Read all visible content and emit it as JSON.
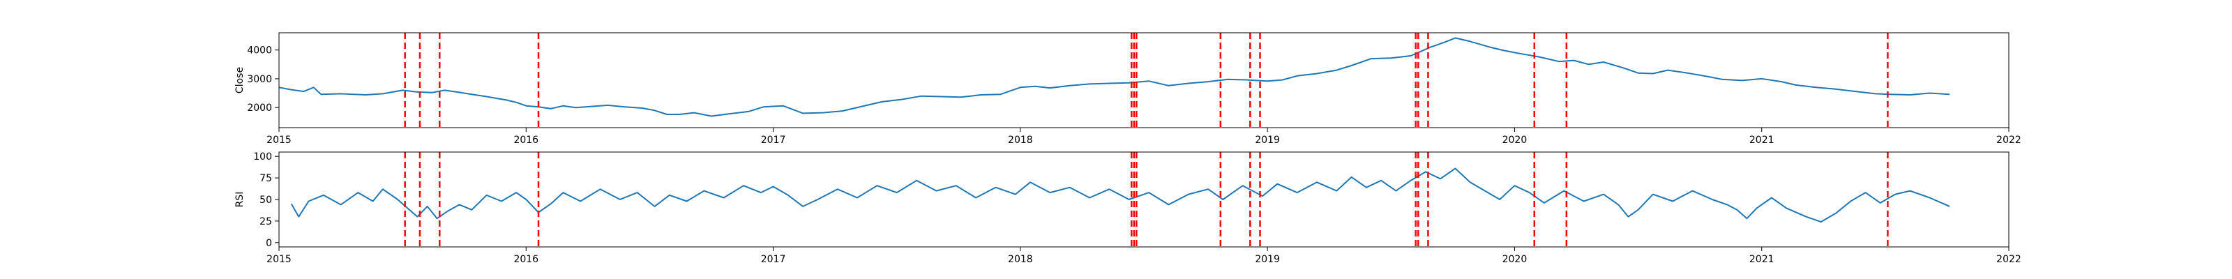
{
  "chart_data": [
    {
      "type": "line",
      "ylabel": "Close",
      "xlabel": "",
      "x_ticks": [
        "2015",
        "2016",
        "2017",
        "2018",
        "2019",
        "2020",
        "2021",
        "2022"
      ],
      "xlim": [
        2015.0,
        2022.0
      ],
      "y_ticks": [
        2000,
        3000,
        4000
      ],
      "ylim": [
        1300,
        4600
      ],
      "grid": false,
      "series": [
        {
          "color": "#1f77b4",
          "points": [
            [
              2015.0,
              2700
            ],
            [
              2015.05,
              2620
            ],
            [
              2015.1,
              2560
            ],
            [
              2015.14,
              2700
            ],
            [
              2015.17,
              2460
            ],
            [
              2015.25,
              2480
            ],
            [
              2015.35,
              2440
            ],
            [
              2015.42,
              2480
            ],
            [
              2015.5,
              2600
            ],
            [
              2015.56,
              2540
            ],
            [
              2015.62,
              2520
            ],
            [
              2015.67,
              2600
            ],
            [
              2015.72,
              2540
            ],
            [
              2015.78,
              2460
            ],
            [
              2015.84,
              2380
            ],
            [
              2015.88,
              2320
            ],
            [
              2015.92,
              2260
            ],
            [
              2015.96,
              2180
            ],
            [
              2016.0,
              2060
            ],
            [
              2016.05,
              2020
            ],
            [
              2016.1,
              1960
            ],
            [
              2016.15,
              2060
            ],
            [
              2016.2,
              2000
            ],
            [
              2016.27,
              2040
            ],
            [
              2016.33,
              2080
            ],
            [
              2016.4,
              2020
            ],
            [
              2016.47,
              1980
            ],
            [
              2016.52,
              1900
            ],
            [
              2016.57,
              1760
            ],
            [
              2016.62,
              1760
            ],
            [
              2016.68,
              1820
            ],
            [
              2016.75,
              1700
            ],
            [
              2016.82,
              1780
            ],
            [
              2016.9,
              1860
            ],
            [
              2016.96,
              2020
            ],
            [
              2017.04,
              2060
            ],
            [
              2017.12,
              1800
            ],
            [
              2017.2,
              1820
            ],
            [
              2017.28,
              1880
            ],
            [
              2017.36,
              2040
            ],
            [
              2017.44,
              2200
            ],
            [
              2017.52,
              2280
            ],
            [
              2017.6,
              2400
            ],
            [
              2017.68,
              2380
            ],
            [
              2017.76,
              2360
            ],
            [
              2017.84,
              2440
            ],
            [
              2017.92,
              2460
            ],
            [
              2018.0,
              2700
            ],
            [
              2018.06,
              2740
            ],
            [
              2018.12,
              2680
            ],
            [
              2018.2,
              2760
            ],
            [
              2018.28,
              2820
            ],
            [
              2018.36,
              2840
            ],
            [
              2018.44,
              2860
            ],
            [
              2018.52,
              2920
            ],
            [
              2018.6,
              2760
            ],
            [
              2018.68,
              2840
            ],
            [
              2018.76,
              2900
            ],
            [
              2018.84,
              2980
            ],
            [
              2018.92,
              2960
            ],
            [
              2019.0,
              2920
            ],
            [
              2019.06,
              2960
            ],
            [
              2019.12,
              3100
            ],
            [
              2019.2,
              3180
            ],
            [
              2019.28,
              3300
            ],
            [
              2019.34,
              3460
            ],
            [
              2019.42,
              3700
            ],
            [
              2019.5,
              3720
            ],
            [
              2019.58,
              3800
            ],
            [
              2019.66,
              4100
            ],
            [
              2019.72,
              4280
            ],
            [
              2019.76,
              4420
            ],
            [
              2019.82,
              4300
            ],
            [
              2019.9,
              4100
            ],
            [
              2019.96,
              3980
            ],
            [
              2020.02,
              3880
            ],
            [
              2020.1,
              3760
            ],
            [
              2020.18,
              3600
            ],
            [
              2020.24,
              3640
            ],
            [
              2020.3,
              3500
            ],
            [
              2020.36,
              3580
            ],
            [
              2020.44,
              3380
            ],
            [
              2020.5,
              3200
            ],
            [
              2020.56,
              3180
            ],
            [
              2020.62,
              3300
            ],
            [
              2020.7,
              3200
            ],
            [
              2020.78,
              3080
            ],
            [
              2020.84,
              2980
            ],
            [
              2020.92,
              2940
            ],
            [
              2021.0,
              3000
            ],
            [
              2021.08,
              2900
            ],
            [
              2021.14,
              2780
            ],
            [
              2021.22,
              2700
            ],
            [
              2021.3,
              2640
            ],
            [
              2021.38,
              2560
            ],
            [
              2021.46,
              2480
            ],
            [
              2021.52,
              2460
            ],
            [
              2021.6,
              2440
            ],
            [
              2021.68,
              2500
            ],
            [
              2021.76,
              2460
            ]
          ]
        }
      ]
    },
    {
      "type": "line",
      "ylabel": "RSI",
      "xlabel": "",
      "x_ticks": [
        "2015",
        "2016",
        "2017",
        "2018",
        "2019",
        "2020",
        "2021",
        "2022"
      ],
      "xlim": [
        2015.0,
        2022.0
      ],
      "y_ticks": [
        0,
        25,
        50,
        75,
        100
      ],
      "ylim": [
        -5,
        105
      ],
      "grid": false,
      "series": [
        {
          "color": "#1f77b4",
          "points": [
            [
              2015.05,
              45
            ],
            [
              2015.08,
              30
            ],
            [
              2015.12,
              48
            ],
            [
              2015.18,
              55
            ],
            [
              2015.25,
              44
            ],
            [
              2015.32,
              58
            ],
            [
              2015.38,
              48
            ],
            [
              2015.42,
              62
            ],
            [
              2015.48,
              50
            ],
            [
              2015.52,
              40
            ],
            [
              2015.56,
              30
            ],
            [
              2015.6,
              42
            ],
            [
              2015.64,
              28
            ],
            [
              2015.68,
              36
            ],
            [
              2015.73,
              44
            ],
            [
              2015.78,
              38
            ],
            [
              2015.84,
              55
            ],
            [
              2015.9,
              48
            ],
            [
              2015.96,
              58
            ],
            [
              2016.0,
              50
            ],
            [
              2016.05,
              35
            ],
            [
              2016.1,
              45
            ],
            [
              2016.15,
              58
            ],
            [
              2016.22,
              48
            ],
            [
              2016.3,
              62
            ],
            [
              2016.38,
              50
            ],
            [
              2016.45,
              58
            ],
            [
              2016.52,
              42
            ],
            [
              2016.58,
              55
            ],
            [
              2016.65,
              48
            ],
            [
              2016.72,
              60
            ],
            [
              2016.8,
              52
            ],
            [
              2016.88,
              66
            ],
            [
              2016.95,
              58
            ],
            [
              2017.0,
              65
            ],
            [
              2017.06,
              55
            ],
            [
              2017.12,
              42
            ],
            [
              2017.18,
              50
            ],
            [
              2017.26,
              62
            ],
            [
              2017.34,
              52
            ],
            [
              2017.42,
              66
            ],
            [
              2017.5,
              58
            ],
            [
              2017.58,
              72
            ],
            [
              2017.66,
              60
            ],
            [
              2017.74,
              66
            ],
            [
              2017.82,
              52
            ],
            [
              2017.9,
              64
            ],
            [
              2017.98,
              56
            ],
            [
              2018.04,
              70
            ],
            [
              2018.12,
              58
            ],
            [
              2018.2,
              64
            ],
            [
              2018.28,
              52
            ],
            [
              2018.36,
              62
            ],
            [
              2018.44,
              50
            ],
            [
              2018.52,
              58
            ],
            [
              2018.6,
              44
            ],
            [
              2018.68,
              56
            ],
            [
              2018.76,
              62
            ],
            [
              2018.82,
              50
            ],
            [
              2018.9,
              66
            ],
            [
              2018.98,
              54
            ],
            [
              2019.04,
              68
            ],
            [
              2019.12,
              58
            ],
            [
              2019.2,
              70
            ],
            [
              2019.28,
              60
            ],
            [
              2019.34,
              76
            ],
            [
              2019.4,
              64
            ],
            [
              2019.46,
              72
            ],
            [
              2019.52,
              60
            ],
            [
              2019.58,
              72
            ],
            [
              2019.64,
              82
            ],
            [
              2019.7,
              74
            ],
            [
              2019.76,
              86
            ],
            [
              2019.82,
              70
            ],
            [
              2019.88,
              60
            ],
            [
              2019.94,
              50
            ],
            [
              2020.0,
              66
            ],
            [
              2020.06,
              58
            ],
            [
              2020.12,
              46
            ],
            [
              2020.2,
              60
            ],
            [
              2020.28,
              48
            ],
            [
              2020.36,
              56
            ],
            [
              2020.42,
              44
            ],
            [
              2020.46,
              30
            ],
            [
              2020.5,
              38
            ],
            [
              2020.56,
              56
            ],
            [
              2020.64,
              48
            ],
            [
              2020.72,
              60
            ],
            [
              2020.8,
              50
            ],
            [
              2020.86,
              44
            ],
            [
              2020.9,
              38
            ],
            [
              2020.94,
              28
            ],
            [
              2020.98,
              40
            ],
            [
              2021.04,
              52
            ],
            [
              2021.1,
              40
            ],
            [
              2021.18,
              30
            ],
            [
              2021.24,
              24
            ],
            [
              2021.3,
              34
            ],
            [
              2021.36,
              48
            ],
            [
              2021.42,
              58
            ],
            [
              2021.48,
              46
            ],
            [
              2021.54,
              56
            ],
            [
              2021.6,
              60
            ],
            [
              2021.68,
              52
            ],
            [
              2021.76,
              42
            ]
          ]
        }
      ]
    }
  ],
  "event_markers": {
    "color": "#ff0000",
    "x": [
      2015.51,
      2015.57,
      2015.65,
      2016.05,
      2018.45,
      2018.46,
      2018.47,
      2018.81,
      2018.93,
      2018.97,
      2019.6,
      2019.61,
      2019.65,
      2020.08,
      2020.21,
      2021.51
    ]
  }
}
